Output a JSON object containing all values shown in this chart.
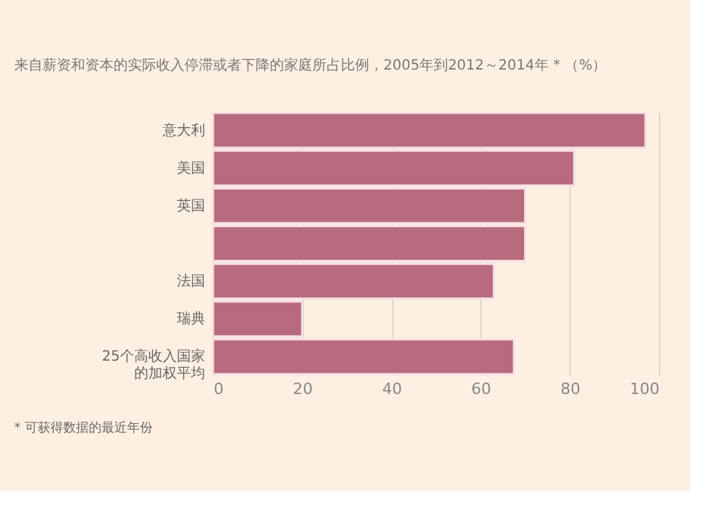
{
  "chart_data": {
    "type": "bar",
    "orientation": "horizontal",
    "title": "来自薪资和资本的实际收入停滞或者下降的家庭所占比例，2005年到2012～2014年 * （%）",
    "categories": [
      "意大利",
      "美国",
      "英国",
      null,
      "法国",
      "瑞典",
      "25个高收入国家的加权平均"
    ],
    "values": [
      97,
      81,
      70,
      70,
      63,
      20,
      67.5
    ],
    "color": "#b86b7e",
    "xlim": [
      0,
      100
    ],
    "xticks": [
      0,
      20,
      40,
      60,
      80,
      100
    ],
    "grid": "x",
    "annotations": [
      "* 可获得数据的最近年份"
    ]
  }
}
